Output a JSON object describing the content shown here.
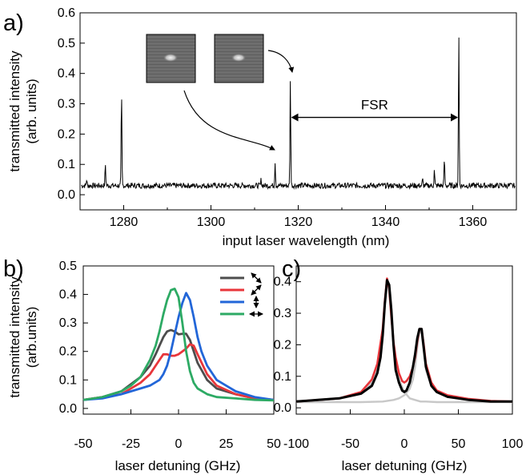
{
  "chart_data": [
    {
      "panel": "a)",
      "type": "line",
      "title": "",
      "xlabel": "input laser wavelength (nm)",
      "ylabel": [
        "transmitted intensity",
        "(arb. units)"
      ],
      "xlim": [
        1270,
        1370
      ],
      "ylim": [
        -0.05,
        0.6
      ],
      "xticks": [
        1280,
        1300,
        1320,
        1340,
        1360
      ],
      "yticks": [
        "0.0",
        "0.1",
        "0.2",
        "0.3",
        "0.4",
        "0.5",
        "0.6"
      ],
      "baseline": 0.03,
      "peaks": [
        {
          "x": 1271.5,
          "y": 0.05
        },
        {
          "x": 1275.8,
          "y": 0.1
        },
        {
          "x": 1279.5,
          "y": 0.34
        },
        {
          "x": 1311.5,
          "y": 0.05
        },
        {
          "x": 1314.7,
          "y": 0.11
        },
        {
          "x": 1318.2,
          "y": 0.38
        },
        {
          "x": 1348.5,
          "y": 0.05
        },
        {
          "x": 1351.2,
          "y": 0.08
        },
        {
          "x": 1353.5,
          "y": 0.12
        },
        {
          "x": 1356.8,
          "y": 0.53
        }
      ],
      "annotation": {
        "text": "FSR",
        "from_x": 1318.2,
        "to_x": 1356.8,
        "y": 0.255
      },
      "insets": 2,
      "colors": {
        "line": "#000000"
      }
    },
    {
      "panel": "b)",
      "type": "line",
      "xlabel": "laser detuning (GHz)",
      "ylabel": [
        "transmitted intensity",
        "(arb.units)"
      ],
      "xlim": [
        -50,
        50
      ],
      "ylim": [
        -0.02,
        0.5
      ],
      "xticks": [
        "-50",
        "-25",
        "0",
        "25",
        "50"
      ],
      "yticks": [
        "0.0",
        "0.1",
        "0.2",
        "0.3",
        "0.4",
        "0.5"
      ],
      "legend_placement": "top-right",
      "series": [
        {
          "color": "#4d4d4d",
          "legend_icon": "diagonal-arrow-icon",
          "x": [
            -50,
            -40,
            -30,
            -20,
            -15,
            -12,
            -10,
            -8,
            -6,
            -4,
            -2,
            0,
            2,
            4,
            6,
            8,
            10,
            15,
            20,
            30,
            40,
            50
          ],
          "y": [
            0.03,
            0.04,
            0.06,
            0.11,
            0.15,
            0.19,
            0.22,
            0.25,
            0.27,
            0.275,
            0.27,
            0.26,
            0.262,
            0.262,
            0.24,
            0.2,
            0.16,
            0.1,
            0.07,
            0.05,
            0.035,
            0.03
          ]
        },
        {
          "color": "#e8363b",
          "legend_icon": "antidiagonal-arrow-icon",
          "x": [
            -50,
            -40,
            -30,
            -20,
            -15,
            -12,
            -10,
            -8,
            -6,
            -4,
            -2,
            0,
            2,
            4,
            6,
            8,
            10,
            15,
            20,
            30,
            40,
            50
          ],
          "y": [
            0.03,
            0.04,
            0.05,
            0.09,
            0.12,
            0.15,
            0.17,
            0.19,
            0.19,
            0.185,
            0.185,
            0.19,
            0.2,
            0.21,
            0.225,
            0.22,
            0.19,
            0.12,
            0.08,
            0.05,
            0.035,
            0.03
          ]
        },
        {
          "color": "#2266d8",
          "legend_icon": "vertical-arrow-icon",
          "x": [
            -50,
            -40,
            -30,
            -20,
            -15,
            -10,
            -8,
            -6,
            -4,
            -2,
            0,
            2,
            4,
            6,
            8,
            10,
            12,
            15,
            20,
            25,
            30,
            40,
            50
          ],
          "y": [
            0.03,
            0.035,
            0.05,
            0.07,
            0.08,
            0.1,
            0.12,
            0.15,
            0.2,
            0.26,
            0.32,
            0.37,
            0.405,
            0.38,
            0.32,
            0.25,
            0.2,
            0.15,
            0.1,
            0.08,
            0.06,
            0.04,
            0.03
          ]
        },
        {
          "color": "#2daa64",
          "legend_icon": "horizontal-arrow-icon",
          "x": [
            -50,
            -40,
            -30,
            -25,
            -20,
            -15,
            -12,
            -10,
            -8,
            -6,
            -4,
            -2,
            0,
            2,
            4,
            6,
            8,
            10,
            15,
            20,
            30,
            40,
            50
          ],
          "y": [
            0.03,
            0.04,
            0.06,
            0.08,
            0.11,
            0.17,
            0.22,
            0.27,
            0.33,
            0.38,
            0.415,
            0.42,
            0.39,
            0.3,
            0.2,
            0.13,
            0.09,
            0.07,
            0.05,
            0.04,
            0.035,
            0.03,
            0.028
          ]
        }
      ]
    },
    {
      "panel": "c)",
      "type": "line",
      "xlabel": "laser detuning (GHz)",
      "xlim": [
        -100,
        100
      ],
      "ylim": [
        -0.02,
        0.45
      ],
      "xticks": [
        "-100",
        "-50",
        "0",
        "50",
        "100"
      ],
      "yticks": [
        "0.0",
        "0.1",
        "0.2",
        "0.3",
        "0.4"
      ],
      "series": [
        {
          "color": "#c8c8c8",
          "x": [
            -100,
            -80,
            -60,
            -40,
            -30,
            -25,
            -20,
            -18,
            -16,
            -14,
            -12,
            -10,
            -5,
            0,
            5,
            10,
            15,
            20,
            30,
            40,
            60,
            80,
            100
          ],
          "y": [
            0.02,
            0.025,
            0.03,
            0.05,
            0.08,
            0.13,
            0.24,
            0.33,
            0.4,
            0.37,
            0.28,
            0.2,
            0.09,
            0.05,
            0.03,
            0.025,
            0.02,
            0.02,
            0.018,
            0.018,
            0.018,
            0.018,
            0.018
          ]
        },
        {
          "color": "#c8c8c8",
          "x": [
            -100,
            -80,
            -60,
            -40,
            -20,
            -10,
            -5,
            0,
            5,
            8,
            10,
            12,
            14,
            16,
            18,
            20,
            25,
            30,
            40,
            60,
            80,
            100
          ],
          "y": [
            0.018,
            0.018,
            0.018,
            0.018,
            0.02,
            0.025,
            0.03,
            0.04,
            0.06,
            0.09,
            0.13,
            0.19,
            0.245,
            0.235,
            0.18,
            0.12,
            0.07,
            0.05,
            0.035,
            0.025,
            0.02,
            0.018
          ]
        },
        {
          "color": "#e8363b",
          "x": [
            -100,
            -80,
            -60,
            -40,
            -30,
            -25,
            -20,
            -18,
            -16,
            -14,
            -12,
            -10,
            -8,
            -5,
            -2,
            0,
            2,
            5,
            8,
            10,
            12,
            14,
            16,
            18,
            20,
            25,
            30,
            40,
            60,
            80,
            100
          ],
          "y": [
            0.02,
            0.025,
            0.03,
            0.05,
            0.09,
            0.14,
            0.25,
            0.34,
            0.41,
            0.38,
            0.29,
            0.21,
            0.16,
            0.11,
            0.085,
            0.08,
            0.085,
            0.1,
            0.13,
            0.16,
            0.21,
            0.25,
            0.25,
            0.2,
            0.14,
            0.08,
            0.055,
            0.04,
            0.028,
            0.022,
            0.02
          ]
        },
        {
          "color": "#000000",
          "x": [
            -100,
            -80,
            -60,
            -40,
            -30,
            -25,
            -22,
            -20,
            -18,
            -16,
            -14,
            -12,
            -10,
            -8,
            -5,
            -2,
            0,
            2,
            5,
            8,
            10,
            12,
            14,
            16,
            18,
            20,
            25,
            30,
            40,
            60,
            80,
            100
          ],
          "y": [
            0.02,
            0.025,
            0.03,
            0.045,
            0.07,
            0.11,
            0.16,
            0.23,
            0.33,
            0.405,
            0.39,
            0.31,
            0.2,
            0.12,
            0.08,
            0.055,
            0.05,
            0.055,
            0.08,
            0.13,
            0.17,
            0.22,
            0.25,
            0.25,
            0.19,
            0.13,
            0.07,
            0.05,
            0.035,
            0.025,
            0.02,
            0.02
          ]
        }
      ]
    }
  ]
}
